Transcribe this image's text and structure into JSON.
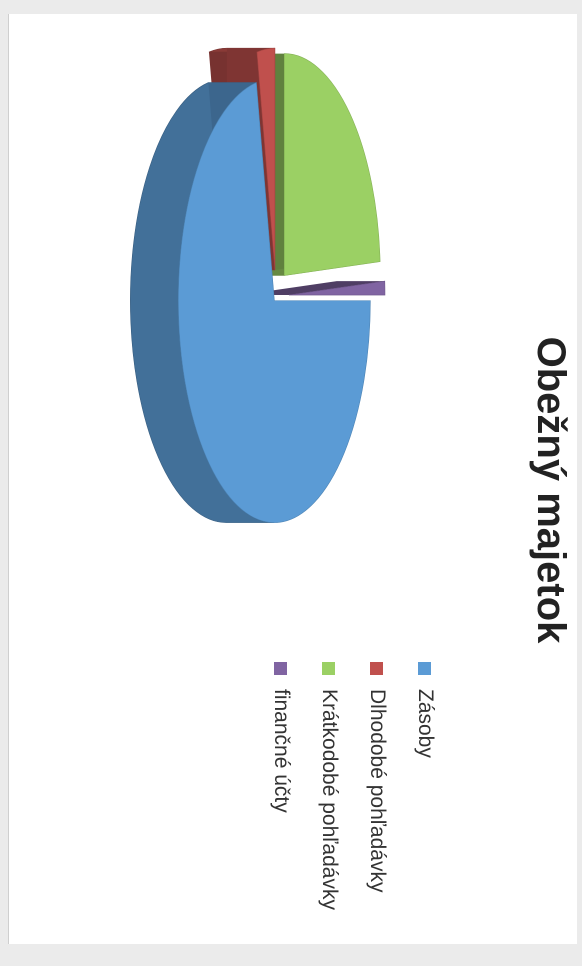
{
  "chart_data": {
    "type": "pie",
    "title": "Obežný majetok",
    "categories": [
      "Zásoby",
      "Dlhodobé pohľadávky",
      "Krátkodobé pohľadávky",
      "finančné účty"
    ],
    "values": [
      72,
      3,
      24,
      1
    ],
    "unit": "",
    "exploded": true,
    "three_d": true,
    "legend": "right",
    "colors": [
      "#5b9bd5",
      "#c0504d",
      "#9bd064",
      "#8064a2"
    ]
  }
}
